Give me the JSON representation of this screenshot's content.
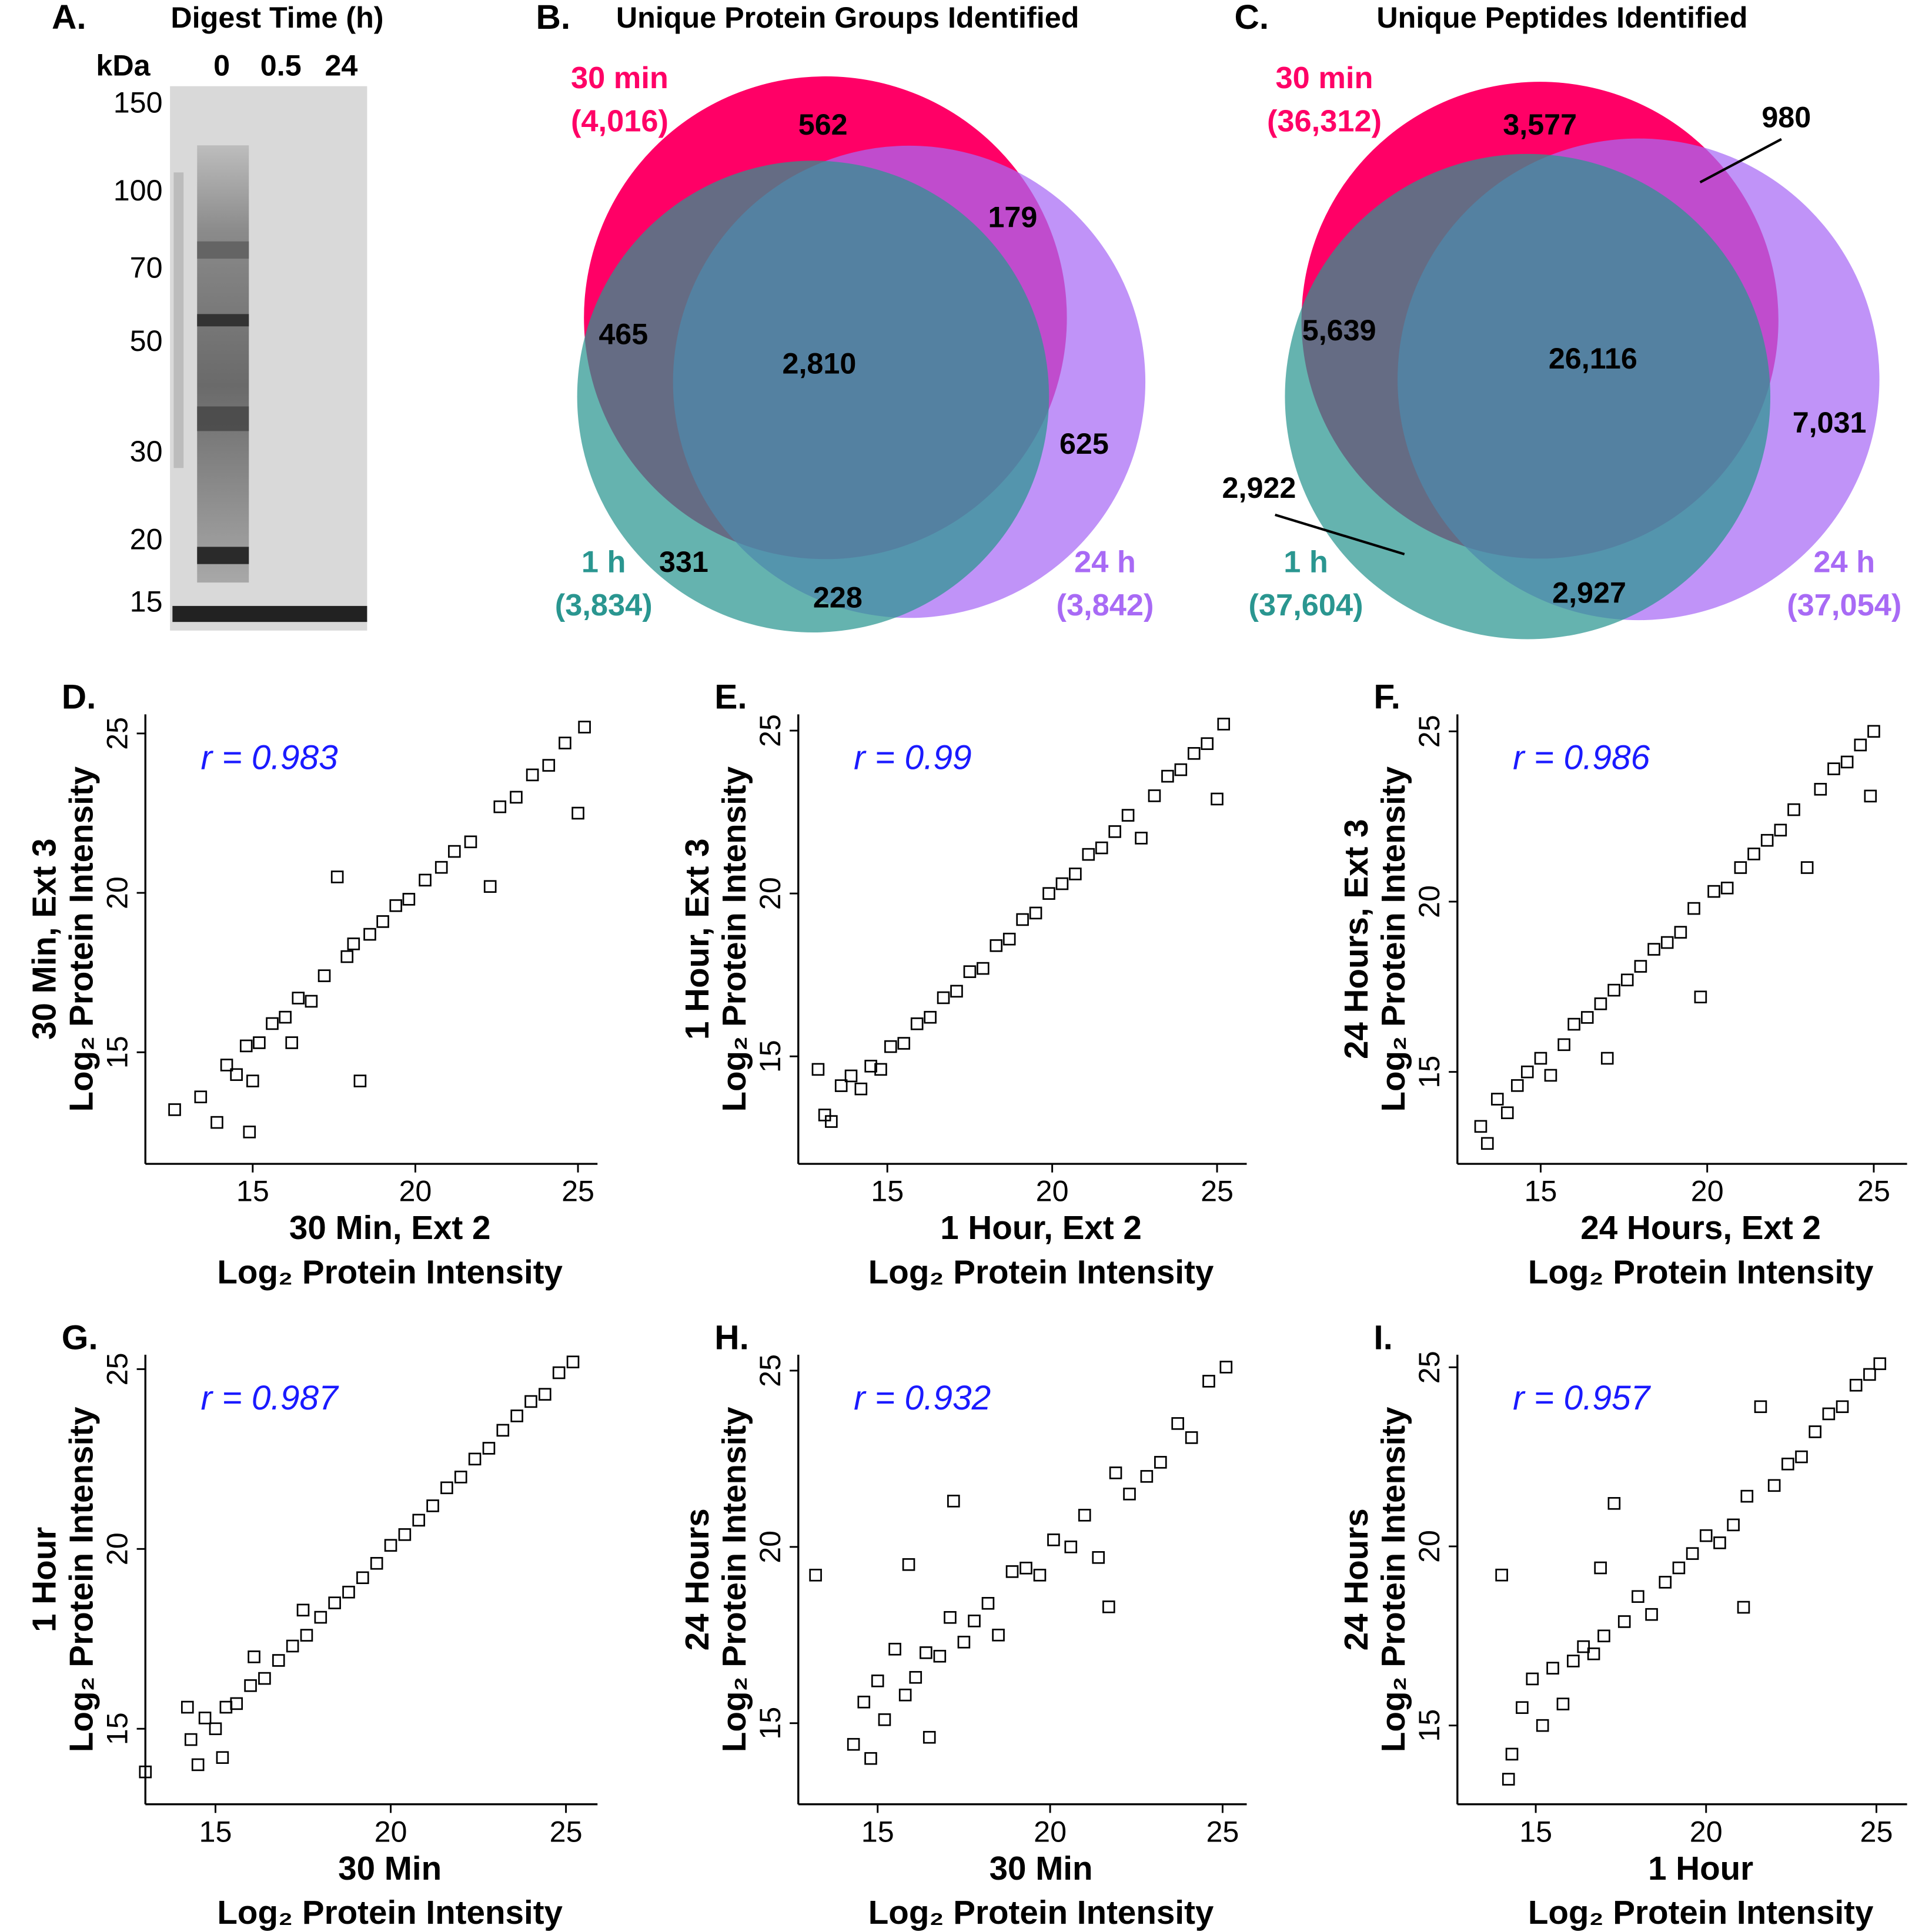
{
  "chart_data": [
    {
      "type": "gel",
      "panel": "A.",
      "title": "Digest Time (h)",
      "y_label": "kDa",
      "categories": [
        "0",
        "0.5",
        "24"
      ],
      "yticks": [
        150,
        100,
        70,
        50,
        30,
        20,
        15
      ],
      "ylim": [
        13.8,
        163.5
      ],
      "log_y": true
    },
    {
      "type": "venn",
      "panel": "B.",
      "title": "Unique Protein Groups Identified",
      "sets": [
        {
          "name": "30 min",
          "size": 4016,
          "size_label": "(4,016)",
          "color": "#ff0066"
        },
        {
          "name": "1 h",
          "size": 3834,
          "size_label": "(3,834)",
          "color": "#2a9690"
        },
        {
          "name": "24 h",
          "size": 3842,
          "size_label": "(3,842)",
          "color": "#a86af5"
        }
      ],
      "values": [
        562,
        179,
        465,
        2810,
        625,
        331,
        228
      ],
      "value_labels": [
        "562",
        "179",
        "465",
        "2,810",
        "625",
        "331",
        "228"
      ]
    },
    {
      "type": "venn",
      "panel": "C.",
      "title": "Unique Peptides Identified",
      "sets": [
        {
          "name": "30 min",
          "size": 36312,
          "size_label": "(36,312)",
          "color": "#ff0066"
        },
        {
          "name": "1 h",
          "size": 37604,
          "size_label": "(37,604)",
          "color": "#2a9690"
        },
        {
          "name": "24 h",
          "size": 37054,
          "size_label": "(37,054)",
          "color": "#a86af5"
        }
      ],
      "values": [
        3577,
        980,
        5639,
        26116,
        7031,
        2922,
        2927
      ],
      "value_labels": [
        "3,577",
        "980",
        "5,639",
        "26,116",
        "7,031",
        "2,922",
        "2,927"
      ]
    },
    {
      "type": "scatter",
      "panel": "D.",
      "annotation": "r = 0.983",
      "x_label": [
        "30 Min, Ext 2",
        "Log₂ Protein Intensity"
      ],
      "y_label": [
        "30 Min, Ext 3",
        "Log₂ Protein Intensity"
      ],
      "xlim": [
        11.7,
        25.6
      ],
      "ylim": [
        11.5,
        25.6
      ],
      "xticks": [
        15,
        20,
        25
      ],
      "yticks": [
        15,
        20,
        25
      ],
      "color": "#000000",
      "marker": "square",
      "x": [
        12.6,
        13.4,
        13.9,
        14.2,
        14.5,
        14.8,
        14.9,
        15.2,
        15.6,
        16.0,
        16.4,
        16.8,
        17.2,
        17.6,
        17.9,
        18.3,
        18.6,
        19.0,
        19.4,
        19.8,
        20.3,
        20.8,
        21.2,
        21.7,
        22.3,
        22.6,
        23.1,
        23.6,
        24.1,
        24.6,
        25.0,
        25.2,
        16.2,
        15.0,
        18.1
      ],
      "values": [
        13.2,
        13.6,
        12.8,
        14.6,
        14.3,
        15.2,
        12.5,
        15.3,
        15.9,
        16.1,
        16.7,
        16.6,
        17.4,
        20.5,
        18.0,
        14.1,
        18.7,
        19.1,
        19.6,
        19.8,
        20.4,
        20.8,
        21.3,
        21.6,
        20.2,
        22.7,
        23.0,
        23.7,
        24.0,
        24.7,
        22.5,
        25.2,
        15.3,
        14.1,
        18.4
      ]
    },
    {
      "type": "scatter",
      "panel": "E.",
      "annotation": "r = 0.99",
      "x_label": [
        "1 Hour, Ext 2",
        "Log₂ Protein Intensity"
      ],
      "y_label": [
        "1 Hour, Ext 3",
        "Log₂ Protein Intensity"
      ],
      "xlim": [
        12.3,
        25.9
      ],
      "ylim": [
        11.7,
        25.5
      ],
      "xticks": [
        15,
        20,
        25
      ],
      "yticks": [
        15,
        20,
        25
      ],
      "color": "#000000",
      "marker": "square",
      "x": [
        12.9,
        13.1,
        13.3,
        13.6,
        13.9,
        14.2,
        14.5,
        14.8,
        15.1,
        15.5,
        15.9,
        16.3,
        16.7,
        17.1,
        17.5,
        17.9,
        18.3,
        18.7,
        19.1,
        19.5,
        19.9,
        20.3,
        20.7,
        21.1,
        21.5,
        21.9,
        22.3,
        22.7,
        23.1,
        23.5,
        23.9,
        24.3,
        24.7,
        25.0,
        25.2
      ],
      "values": [
        14.6,
        13.2,
        13.0,
        14.1,
        14.4,
        14.0,
        14.7,
        14.6,
        15.3,
        15.4,
        16.0,
        16.2,
        16.8,
        17.0,
        17.6,
        17.7,
        18.4,
        18.6,
        19.2,
        19.4,
        20.0,
        20.3,
        20.6,
        21.2,
        21.4,
        21.9,
        22.4,
        21.7,
        23.0,
        23.6,
        23.8,
        24.3,
        24.6,
        22.9,
        25.2
      ]
    },
    {
      "type": "scatter",
      "panel": "F.",
      "annotation": "r = 0.986",
      "x_label": [
        "24 Hours, Ext 2",
        "Log₂ Protein Intensity"
      ],
      "y_label": [
        "24 Hours, Ext 3",
        "Log₂ Protein Intensity"
      ],
      "xlim": [
        12.5,
        26.0
      ],
      "ylim": [
        12.3,
        25.5
      ],
      "xticks": [
        15,
        20,
        25
      ],
      "yticks": [
        15,
        20,
        25
      ],
      "color": "#000000",
      "marker": "square",
      "x": [
        13.2,
        13.4,
        13.7,
        14.0,
        14.3,
        14.6,
        15.0,
        15.3,
        15.7,
        16.0,
        16.4,
        16.8,
        17.2,
        17.6,
        18.0,
        18.4,
        18.8,
        19.2,
        19.6,
        19.8,
        20.2,
        20.6,
        21.0,
        21.4,
        21.8,
        22.2,
        22.6,
        23.0,
        23.4,
        23.8,
        24.2,
        24.6,
        24.9,
        25.0,
        17.0
      ],
      "values": [
        13.4,
        12.9,
        14.2,
        13.8,
        14.6,
        15.0,
        15.4,
        14.9,
        15.8,
        16.4,
        16.6,
        17.0,
        17.4,
        17.7,
        18.1,
        18.6,
        18.8,
        19.1,
        19.8,
        17.2,
        20.3,
        20.4,
        21.0,
        21.4,
        21.8,
        22.1,
        22.7,
        21.0,
        23.3,
        23.9,
        24.1,
        24.6,
        23.1,
        25.0,
        15.4
      ]
    },
    {
      "type": "scatter",
      "panel": "G.",
      "annotation": "r = 0.987",
      "x_label": [
        "30 Min",
        "Log₂ Protein Intensity"
      ],
      "y_label": [
        "1 Hour",
        "Log₂ Protein Intensity"
      ],
      "xlim": [
        13.0,
        25.9
      ],
      "ylim": [
        12.9,
        25.4
      ],
      "xticks": [
        15,
        20,
        25
      ],
      "yticks": [
        15,
        20,
        25
      ],
      "color": "#000000",
      "marker": "square",
      "x": [
        13.0,
        14.3,
        14.5,
        14.7,
        15.0,
        15.3,
        15.6,
        16.0,
        16.4,
        16.8,
        17.2,
        17.6,
        18.0,
        18.4,
        18.8,
        19.2,
        19.6,
        20.0,
        20.4,
        20.8,
        21.2,
        21.6,
        22.0,
        22.4,
        22.8,
        23.2,
        23.6,
        24.0,
        24.4,
        24.8,
        25.2,
        14.2,
        16.1,
        17.5,
        15.2
      ],
      "values": [
        13.8,
        14.7,
        14.0,
        15.3,
        15.0,
        15.6,
        15.7,
        16.2,
        16.4,
        16.9,
        17.3,
        17.6,
        18.1,
        18.5,
        18.8,
        19.2,
        19.6,
        20.1,
        20.4,
        20.8,
        21.2,
        21.7,
        22.0,
        22.5,
        22.8,
        23.3,
        23.7,
        24.1,
        24.3,
        24.9,
        25.2,
        15.6,
        17.0,
        18.3,
        14.2
      ]
    },
    {
      "type": "scatter",
      "panel": "H.",
      "annotation": "r = 0.932",
      "x_label": [
        "30 Min",
        "Log₂ Protein Intensity"
      ],
      "y_label": [
        "24 Hours",
        "Log₂ Protein Intensity"
      ],
      "xlim": [
        12.7,
        25.7
      ],
      "ylim": [
        12.7,
        25.45
      ],
      "xticks": [
        15,
        20,
        25
      ],
      "yticks": [
        15,
        20,
        25
      ],
      "color": "#000000",
      "marker": "square",
      "x": [
        13.2,
        14.3,
        14.6,
        14.8,
        15.0,
        15.2,
        15.5,
        15.8,
        16.1,
        16.4,
        16.8,
        17.1,
        17.5,
        17.8,
        18.2,
        18.5,
        18.9,
        19.3,
        19.7,
        20.1,
        20.6,
        21.0,
        21.4,
        21.9,
        22.3,
        22.8,
        23.2,
        23.7,
        24.1,
        24.6,
        25.1,
        15.9,
        17.2,
        21.7,
        16.5
      ],
      "values": [
        19.2,
        14.4,
        15.6,
        14.0,
        16.2,
        15.1,
        17.1,
        15.8,
        16.3,
        17.0,
        16.9,
        18.0,
        17.3,
        17.9,
        18.4,
        17.5,
        19.3,
        19.4,
        19.2,
        20.2,
        20.0,
        20.9,
        19.7,
        22.1,
        21.5,
        22.0,
        22.4,
        23.5,
        23.1,
        24.7,
        25.1,
        19.5,
        21.3,
        18.3,
        14.6
      ]
    },
    {
      "type": "scatter",
      "panel": "I.",
      "annotation": "r = 0.957",
      "x_label": [
        "1 Hour",
        "Log₂ Protein Intensity"
      ],
      "y_label": [
        "24 Hours",
        "Log₂ Protein Intensity"
      ],
      "xlim": [
        12.7,
        25.9
      ],
      "ylim": [
        12.8,
        25.35
      ],
      "xticks": [
        15,
        20,
        25
      ],
      "yticks": [
        15,
        20,
        25
      ],
      "color": "#000000",
      "marker": "square",
      "x": [
        14.0,
        14.3,
        14.6,
        14.9,
        15.2,
        15.5,
        15.8,
        16.1,
        16.4,
        16.7,
        17.0,
        17.3,
        17.6,
        18.0,
        18.4,
        18.8,
        19.2,
        19.6,
        20.0,
        20.4,
        20.8,
        21.2,
        21.6,
        22.0,
        22.4,
        22.8,
        23.2,
        23.6,
        24.0,
        24.4,
        24.8,
        25.1,
        14.2,
        16.9,
        21.1
      ],
      "values": [
        19.2,
        14.2,
        15.5,
        16.3,
        15.0,
        16.6,
        15.6,
        16.8,
        17.2,
        17.0,
        17.5,
        21.2,
        17.9,
        18.6,
        18.1,
        19.0,
        19.4,
        19.8,
        20.3,
        20.1,
        20.6,
        21.4,
        23.9,
        21.7,
        22.3,
        22.5,
        23.2,
        23.7,
        23.9,
        24.5,
        24.8,
        25.1,
        13.5,
        19.4,
        18.3
      ]
    }
  ]
}
